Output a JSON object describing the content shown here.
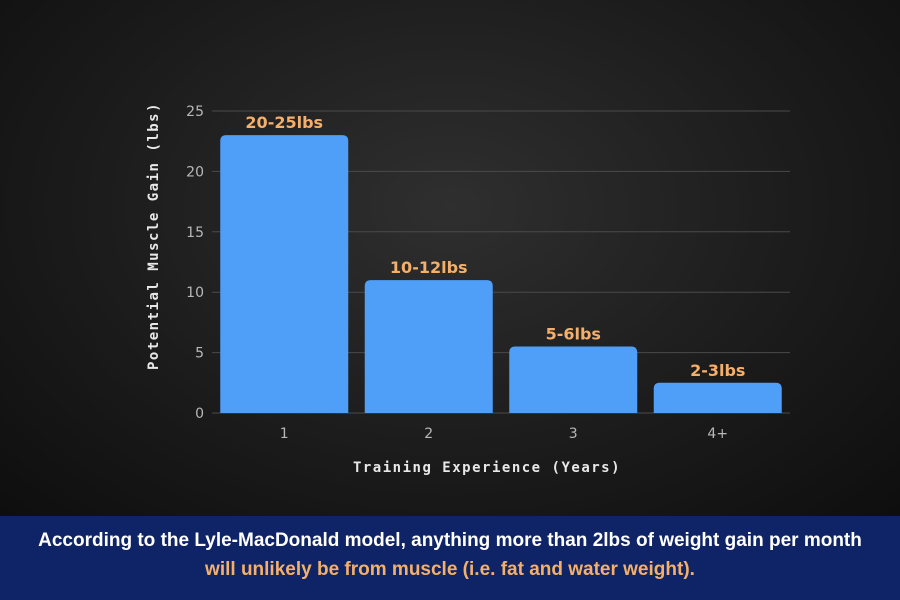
{
  "colors": {
    "bar": "#4f9ef8",
    "data_label": "#f4b06a",
    "footer_bg": "#0e2466",
    "footer_text": "#ffffff",
    "footer_highlight": "#f4b06a",
    "grid": "#4a4a4a"
  },
  "chart_data": {
    "type": "bar",
    "categories": [
      "1",
      "2",
      "3",
      "4+"
    ],
    "values": [
      23,
      11,
      5.5,
      2.5
    ],
    "data_labels": [
      "20-25lbs",
      "10-12lbs",
      "5-6lbs",
      "2-3lbs"
    ],
    "xlabel": "Training Experience (Years)",
    "ylabel": "Potential Muscle Gain (lbs)",
    "ylim": [
      0,
      25
    ],
    "yticks": [
      0,
      5,
      10,
      15,
      20,
      25
    ],
    "grid": true,
    "legend": "none"
  },
  "footer": {
    "line1": "According to the Lyle-MacDonald model, anything more than 2lbs of weight gain per month",
    "line2": "will unlikely be from muscle (i.e. fat and water weight)."
  }
}
